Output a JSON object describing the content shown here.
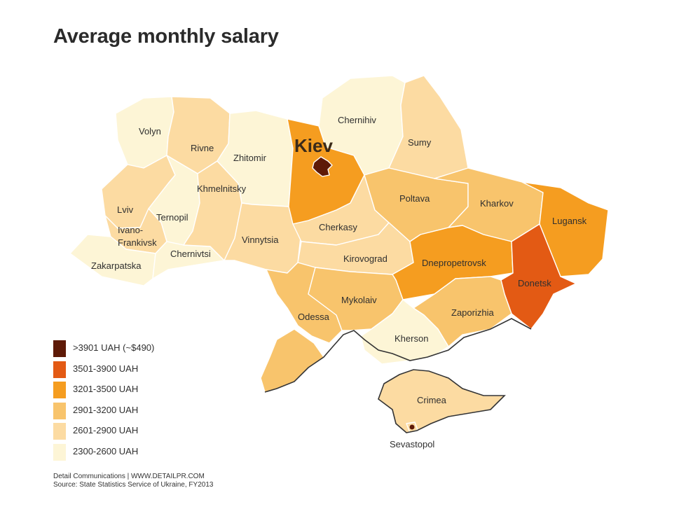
{
  "title": "Average monthly salary",
  "colors": {
    "c1": "#5e1a07",
    "c2": "#e35a14",
    "c3": "#f59d20",
    "c4": "#f8c46c",
    "c5": "#fcdba2",
    "c6": "#fdf5d6"
  },
  "legend": [
    {
      "label": ">3901 UAH (~$490)",
      "color": "#5e1a07"
    },
    {
      "label": "3501-3900 UAH",
      "color": "#e35a14"
    },
    {
      "label": "3201-3500 UAH",
      "color": "#f59d20"
    },
    {
      "label": "2901-3200 UAH",
      "color": "#f8c46c"
    },
    {
      "label": "2601-2900 UAH",
      "color": "#fcdba2"
    },
    {
      "label": "2300-2600 UAH",
      "color": "#fdf5d6"
    }
  ],
  "regions": {
    "volyn": {
      "name": "Volyn",
      "band": "2300-2600 UAH"
    },
    "rivne": {
      "name": "Rivne",
      "band": "2601-2900 UAH"
    },
    "zhitomir": {
      "name": "Zhitomir",
      "band": "2300-2600 UAH"
    },
    "kiev_oblast": {
      "name": "",
      "band": "3201-3500 UAH"
    },
    "kiev": {
      "name": "Kiev",
      "band": ">3901 UAH (~$490)"
    },
    "chernihiv": {
      "name": "Chernihiv",
      "band": "2300-2600 UAH"
    },
    "sumy": {
      "name": "Sumy",
      "band": "2601-2900 UAH"
    },
    "lviv": {
      "name": "Lviv",
      "band": "2601-2900 UAH"
    },
    "ternopil": {
      "name": "Ternopil",
      "band": "2300-2600 UAH"
    },
    "khmelnitsky": {
      "name": "Khmelnitsky",
      "band": "2601-2900 UAH"
    },
    "ivano_frankivsk": {
      "name": "Ivano-\nFrankivsk",
      "band": "2601-2900 UAH"
    },
    "zakarpatska": {
      "name": "Zakarpatska",
      "band": "2300-2600 UAH"
    },
    "chernivtsi": {
      "name": "Chernivtsi",
      "band": "2300-2600 UAH"
    },
    "vinnytsia": {
      "name": "Vinnytsia",
      "band": "2601-2900 UAH"
    },
    "cherkasy": {
      "name": "Cherkasy",
      "band": "2601-2900 UAH"
    },
    "kirovograd": {
      "name": "Kirovograd",
      "band": "2601-2900 UAH"
    },
    "poltava": {
      "name": "Poltava",
      "band": "2901-3200 UAH"
    },
    "kharkov": {
      "name": "Kharkov",
      "band": "2901-3200 UAH"
    },
    "lugansk": {
      "name": "Lugansk",
      "band": "3201-3500 UAH"
    },
    "donetsk": {
      "name": "Donetsk",
      "band": "3501-3900 UAH"
    },
    "dnepropetrovsk": {
      "name": "Dnepropetrovsk",
      "band": "3201-3500 UAH"
    },
    "zaporizhia": {
      "name": "Zaporizhia",
      "band": "2901-3200 UAH"
    },
    "odessa": {
      "name": "Odessa",
      "band": "2901-3200 UAH"
    },
    "mykolaiv": {
      "name": "Mykolaiv",
      "band": "2901-3200 UAH"
    },
    "kherson": {
      "name": "Kherson",
      "band": "2300-2600 UAH"
    },
    "crimea": {
      "name": "Crimea",
      "band": "2601-2900 UAH"
    },
    "sevastopol": {
      "name": "Sevastopol",
      "band": "2601-2900 UAH"
    }
  },
  "credits": {
    "line1": "Detail Communications | WWW.DETAILPR.COM",
    "line2": "Source: State Statistics Service of Ukraine, FY2013"
  }
}
